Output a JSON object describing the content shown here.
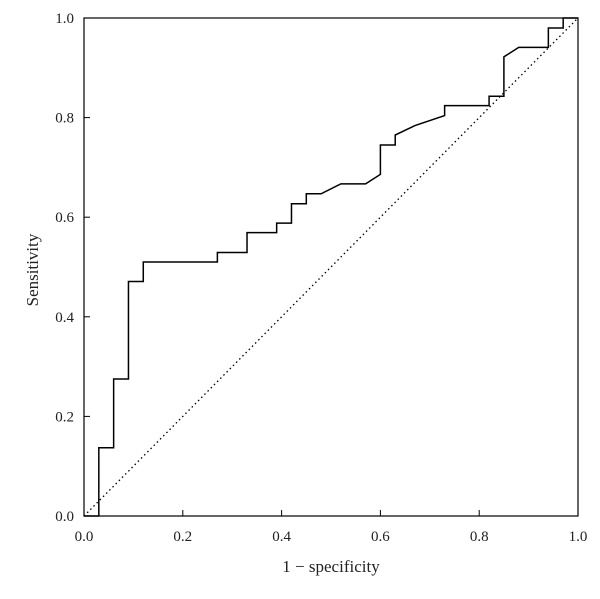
{
  "chart_data": {
    "type": "line",
    "title": "",
    "xlabel": "1 − specificity",
    "ylabel": "Sensitivity",
    "xlim": [
      0.0,
      1.0
    ],
    "ylim": [
      0.0,
      1.0
    ],
    "x_ticks": [
      "0.0",
      "0.2",
      "0.4",
      "0.6",
      "0.8",
      "1.0"
    ],
    "y_ticks": [
      "0.0",
      "0.2",
      "0.4",
      "0.6",
      "0.8",
      "1.0"
    ],
    "grid": false,
    "series": [
      {
        "style": "solid",
        "color": "#000000",
        "x": [
          0.0,
          0.03,
          0.03,
          0.06,
          0.06,
          0.09,
          0.09,
          0.12,
          0.12,
          0.27,
          0.27,
          0.33,
          0.33,
          0.39,
          0.39,
          0.42,
          0.42,
          0.45,
          0.45,
          0.48,
          0.52,
          0.57,
          0.6,
          0.6,
          0.63,
          0.63,
          0.67,
          0.73,
          0.73,
          0.82,
          0.82,
          0.85,
          0.85,
          0.88,
          0.94,
          0.94,
          0.97,
          0.97,
          1.0
        ],
        "y": [
          0.0,
          0.0,
          0.137,
          0.137,
          0.275,
          0.275,
          0.471,
          0.471,
          0.51,
          0.51,
          0.529,
          0.529,
          0.569,
          0.569,
          0.588,
          0.588,
          0.627,
          0.627,
          0.647,
          0.647,
          0.667,
          0.667,
          0.686,
          0.745,
          0.745,
          0.765,
          0.784,
          0.804,
          0.824,
          0.824,
          0.843,
          0.843,
          0.922,
          0.941,
          0.941,
          0.98,
          0.98,
          1.0,
          1.0
        ]
      },
      {
        "style": "dotted",
        "color": "#000000",
        "x": [
          0.0,
          1.0
        ],
        "y": [
          0.0,
          1.0
        ]
      }
    ]
  }
}
